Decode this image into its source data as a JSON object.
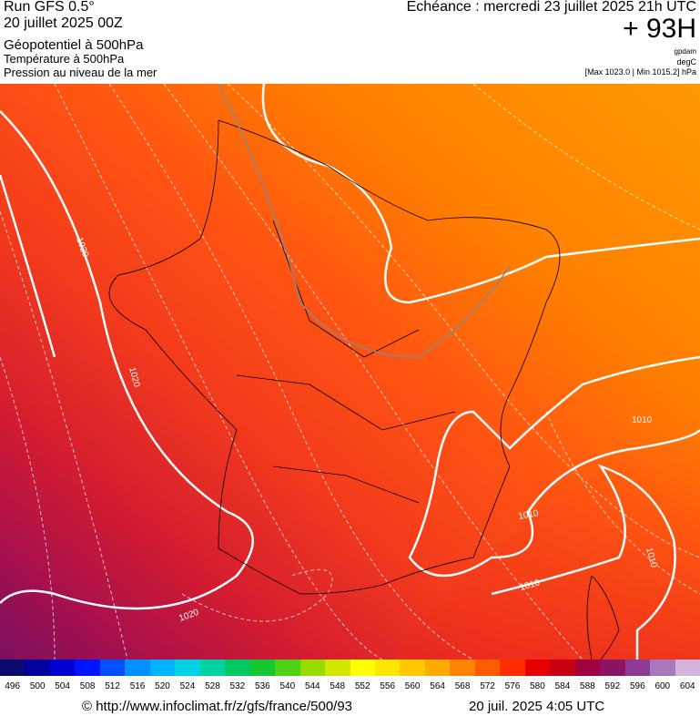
{
  "header": {
    "run": "Run GFS 0.5°",
    "date": "20 juillet 2025 00Z",
    "fields": [
      "Géopotentiel à 500hPa",
      "Température à 500hPa",
      "Pression au niveau de la mer"
    ],
    "echeance": "Echéance : mercredi 23 juillet 2025 21h UTC",
    "hour": "+ 93H",
    "units": [
      "gpdam",
      "degC",
      "[Max 1023.0 | Min 1015.2] hPa"
    ]
  },
  "contour_labels": [
    "1020",
    "1020",
    "1020",
    "1010",
    "1010",
    "1010",
    "1010"
  ],
  "legend": {
    "labels": [
      "496",
      "500",
      "504",
      "508",
      "512",
      "516",
      "520",
      "524",
      "528",
      "532",
      "536",
      "540",
      "544",
      "548",
      "552",
      "556",
      "560",
      "564",
      "568",
      "572",
      "576",
      "580",
      "584",
      "588",
      "592",
      "596",
      "600",
      "604"
    ],
    "colors": [
      "#0a0a6e",
      "#0000a0",
      "#0000d2",
      "#0014ff",
      "#0050ff",
      "#0090ff",
      "#00b4ff",
      "#00d2e6",
      "#00d2a0",
      "#00c864",
      "#14c832",
      "#50d214",
      "#96dc00",
      "#d2e600",
      "#ffff00",
      "#ffe600",
      "#ffc800",
      "#ffaa00",
      "#ff8200",
      "#ff5a00",
      "#ff2d00",
      "#e60000",
      "#c80014",
      "#a0003c",
      "#8c1464",
      "#8c3c96",
      "#aa78be",
      "#d2b4dc"
    ]
  },
  "footer": {
    "url": "© http://www.infoclimat.fr/z/gfs/france/500/93",
    "timestamp": "20 juil. 2025  4:05 UTC"
  }
}
